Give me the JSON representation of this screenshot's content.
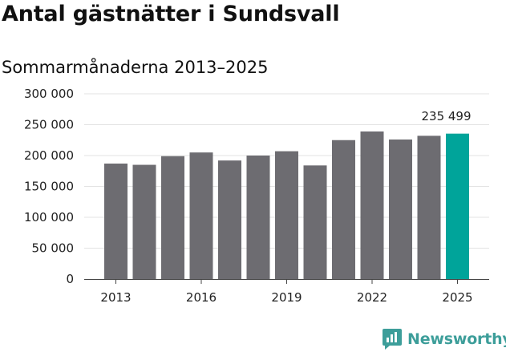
{
  "title": "Antal gästnätter i Sundsvall",
  "subtitle": "Sommarmånaderna 2013–2025",
  "brand": "Newsworthy",
  "colors": {
    "bar": "#6d6c71",
    "highlight": "#00a49a",
    "grid": "#e3e3e3",
    "brand": "#3d9e9a"
  },
  "chart_data": {
    "type": "bar",
    "categories": [
      "2013",
      "2014",
      "2015",
      "2016",
      "2017",
      "2018",
      "2019",
      "2020",
      "2021",
      "2022",
      "2023",
      "2024",
      "2025"
    ],
    "values": [
      187000,
      185000,
      199000,
      205000,
      192000,
      200000,
      207000,
      184000,
      225000,
      239000,
      226000,
      232000,
      235499
    ],
    "highlight_index": 12,
    "data_labels": [
      {
        "index": 12,
        "text": "235 499"
      }
    ],
    "x_tick_labels": [
      "2013",
      "2016",
      "2019",
      "2022",
      "2025"
    ],
    "y_ticks": [
      0,
      50000,
      100000,
      150000,
      200000,
      250000,
      300000
    ],
    "y_tick_labels": [
      "0",
      "50 000",
      "100 000",
      "150 000",
      "200 000",
      "250 000",
      "300 000"
    ],
    "ylim": [
      0,
      300000
    ],
    "grid": true,
    "legend": "none"
  }
}
